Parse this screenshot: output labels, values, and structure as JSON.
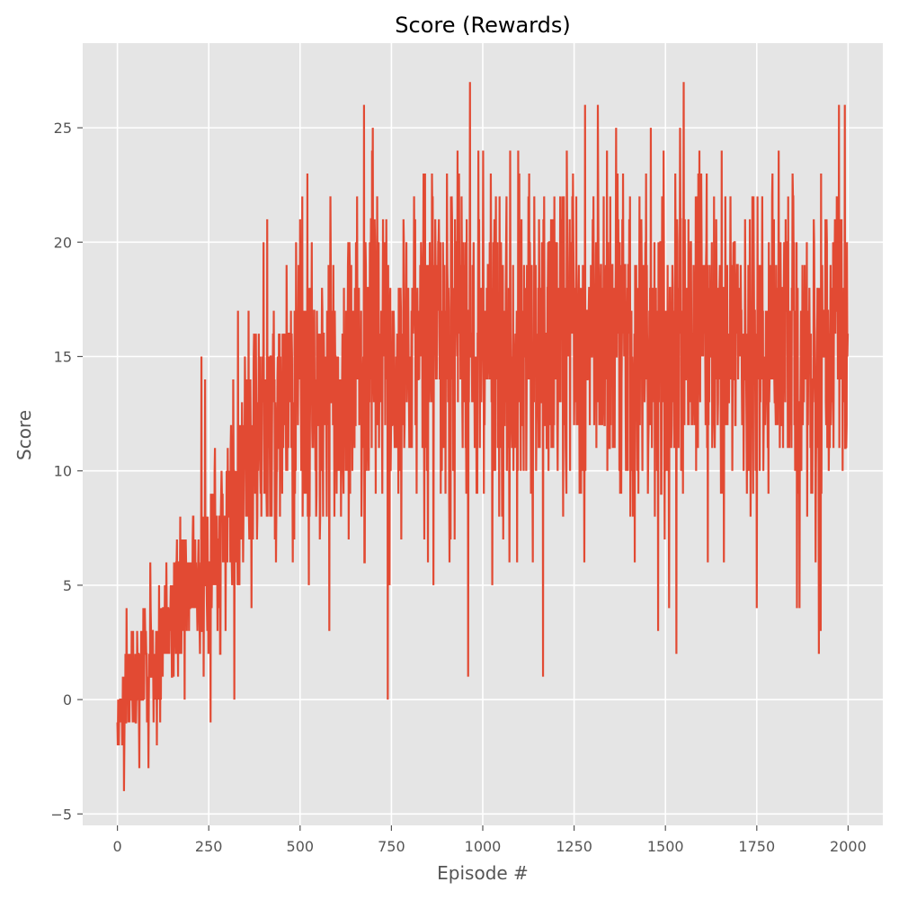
{
  "chart_data": {
    "type": "line",
    "title": "Score (Rewards)",
    "xlabel": "Episode #",
    "ylabel": "Score",
    "xlim": [
      -95,
      2095
    ],
    "ylim": [
      -5.5,
      28.7
    ],
    "xticks": [
      0,
      250,
      500,
      750,
      1000,
      1250,
      1500,
      1750,
      2000
    ],
    "yticks": [
      -5,
      0,
      5,
      10,
      15,
      20,
      25
    ],
    "grid": true,
    "style": "ggplot",
    "series": [
      {
        "color": "#e24a33",
        "episodes": 2000,
        "trend": [
          [
            0,
            0
          ],
          [
            50,
            0.5
          ],
          [
            100,
            2
          ],
          [
            150,
            3.5
          ],
          [
            200,
            5
          ],
          [
            250,
            6
          ],
          [
            300,
            8
          ],
          [
            350,
            10
          ],
          [
            400,
            12
          ],
          [
            450,
            12.5
          ],
          [
            500,
            13
          ],
          [
            550,
            13.5
          ],
          [
            600,
            13.8
          ],
          [
            650,
            14
          ],
          [
            700,
            14.5
          ],
          [
            750,
            15
          ],
          [
            800,
            15
          ],
          [
            850,
            15.2
          ],
          [
            900,
            15.5
          ],
          [
            950,
            15.5
          ],
          [
            1000,
            15.5
          ],
          [
            1100,
            15.6
          ],
          [
            1200,
            15.8
          ],
          [
            1300,
            15.7
          ],
          [
            1400,
            15.5
          ],
          [
            1500,
            15.5
          ],
          [
            1600,
            15.6
          ],
          [
            1700,
            15.5
          ],
          [
            1800,
            15
          ],
          [
            1900,
            15
          ],
          [
            2000,
            16
          ]
        ],
        "y_min_observed": -4,
        "y_max_observed": 27,
        "notable_points": [
          [
            10,
            -1
          ],
          [
            18,
            -4
          ],
          [
            25,
            4
          ],
          [
            60,
            -3
          ],
          [
            85,
            -3
          ],
          [
            90,
            6
          ],
          [
            230,
            15
          ],
          [
            240,
            14
          ],
          [
            255,
            -1
          ],
          [
            320,
            0
          ],
          [
            330,
            17
          ],
          [
            400,
            20
          ],
          [
            410,
            21
          ],
          [
            500,
            21
          ],
          [
            520,
            23
          ],
          [
            580,
            3
          ],
          [
            675,
            26
          ],
          [
            740,
            0
          ],
          [
            745,
            5
          ],
          [
            865,
            5
          ],
          [
            960,
            1
          ],
          [
            965,
            27
          ],
          [
            1100,
            23
          ],
          [
            1165,
            1
          ],
          [
            1230,
            24
          ],
          [
            1280,
            26
          ],
          [
            1315,
            26
          ],
          [
            1365,
            25
          ],
          [
            1460,
            25
          ],
          [
            1480,
            3
          ],
          [
            1510,
            4
          ],
          [
            1530,
            2
          ],
          [
            1550,
            27
          ],
          [
            1590,
            23
          ],
          [
            1750,
            4
          ],
          [
            1810,
            24
          ],
          [
            1860,
            4
          ],
          [
            1920,
            2
          ],
          [
            1925,
            3
          ],
          [
            1975,
            26
          ],
          [
            1985,
            10
          ],
          [
            2000,
            16
          ]
        ]
      }
    ]
  }
}
